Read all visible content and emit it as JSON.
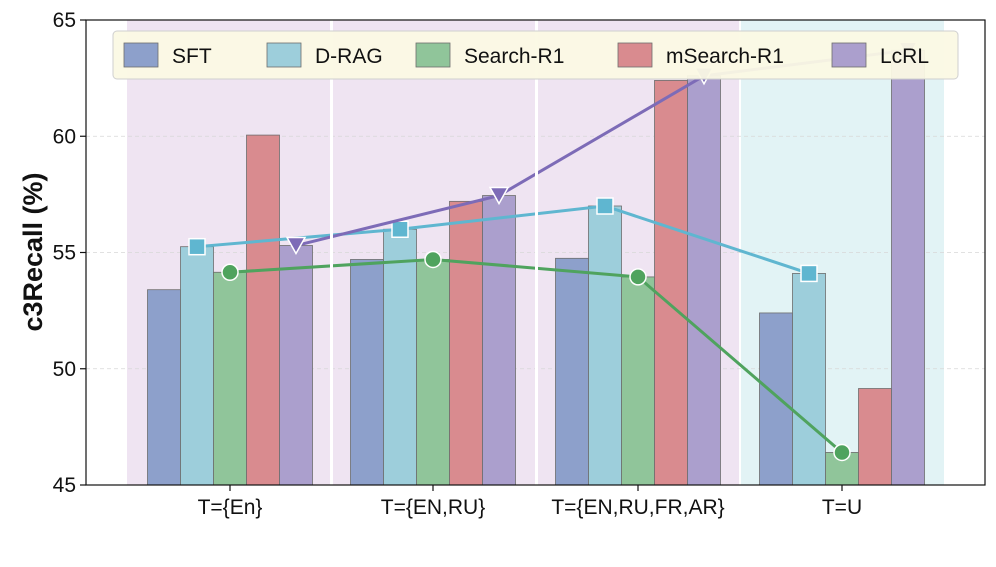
{
  "chart_data": {
    "type": "bar",
    "title": "",
    "xlabel": "",
    "ylabel": "c3Recall (%)",
    "ylim": [
      45,
      65
    ],
    "yticks": [
      45,
      50,
      55,
      60,
      65
    ],
    "categories": [
      "T={En}",
      "T={EN,RU}",
      "T={EN,RU,FR,AR}",
      "T=U"
    ],
    "category_backgrounds": [
      "#efe4f2",
      "#efe4f2",
      "#efe4f2",
      "#e2f3f5"
    ],
    "grid": "horizontal dashed",
    "legend_position": "top",
    "series": [
      {
        "name": "SFT",
        "color": "#8da0cb",
        "values": [
          53.4,
          54.7,
          54.75,
          52.4
        ]
      },
      {
        "name": "D-RAG",
        "color": "#9dcedb",
        "values": [
          55.25,
          56.0,
          57.0,
          54.1
        ]
      },
      {
        "name": "Search-R1",
        "color": "#90c59a",
        "values": [
          54.15,
          54.7,
          53.95,
          46.4
        ]
      },
      {
        "name": "mSearch-R1",
        "color": "#d98b8f",
        "values": [
          60.05,
          57.2,
          62.4,
          49.15
        ]
      },
      {
        "name": "LcRL",
        "color": "#ab9fcd",
        "values": [
          55.3,
          57.45,
          62.6,
          63.7
        ]
      }
    ],
    "lines": [
      {
        "series": "D-RAG",
        "color": "#5fb6d0",
        "marker": "square",
        "values": [
          55.25,
          56.0,
          57.0,
          54.1
        ]
      },
      {
        "series": "Search-R1",
        "color": "#4fa35e",
        "marker": "circle",
        "values": [
          54.15,
          54.7,
          53.95,
          46.4
        ]
      },
      {
        "series": "LcRL",
        "color": "#7d6bb7",
        "marker": "triangle-down",
        "values": [
          55.3,
          57.45,
          62.6,
          63.7
        ]
      }
    ]
  }
}
